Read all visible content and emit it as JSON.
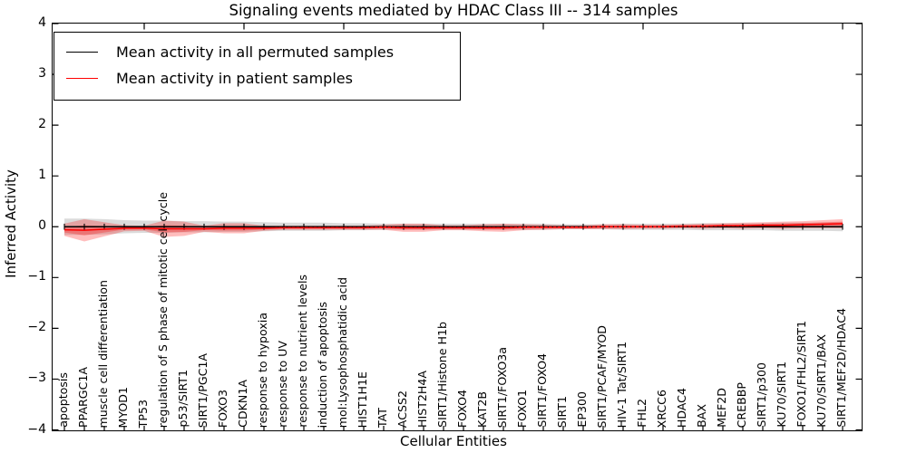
{
  "title": "Signaling events mediated by HDAC Class III -- 314 samples",
  "axes": {
    "xlabel": "Cellular Entities",
    "ylabel": "Inferred Activity",
    "ytick_labels": [
      "4",
      "3",
      "2",
      "1",
      "0",
      "−1",
      "−2",
      "−3",
      "−4"
    ],
    "ylim": [
      -4,
      4
    ]
  },
  "legend": {
    "items": [
      {
        "label": "Mean activity in all permuted samples",
        "color": "#000000"
      },
      {
        "label": "Mean activity in patient samples",
        "color": "#ff0000"
      }
    ]
  },
  "chart_data": {
    "type": "line",
    "title": "Signaling events mediated by HDAC Class III -- 314 samples",
    "xlabel": "Cellular Entities",
    "ylabel": "Inferred Activity",
    "ylim": [
      -4,
      4
    ],
    "grid": false,
    "legend_position": "upper left",
    "x_major_tick_every": 5,
    "categories": [
      "apoptosis",
      "PPARGC1A",
      "muscle cell differentiation",
      "MYOD1",
      "TP53",
      "regulation of S phase of mitotic cell cycle",
      "p53/SIRT1",
      "SIRT1/PGC1A",
      "FOXO3",
      "CDKN1A",
      "response to hypoxia",
      "response to UV",
      "response to nutrient levels",
      "induction of apoptosis",
      "mol:Lysophosphatidic acid",
      "HIST1H1E",
      "TAT",
      "ACSS2",
      "HIST2H4A",
      "SIRT1/Histone H1b",
      "FOXO4",
      "KAT2B",
      "SIRT1/FOXO3a",
      "FOXO1",
      "SIRT1/FOXO4",
      "SIRT1",
      "EP300",
      "SIRT1/PCAF/MYOD",
      "HIV-1 Tat/SIRT1",
      "FHL2",
      "XRCC6",
      "HDAC4",
      "BAX",
      "MEF2D",
      "CREBBP",
      "SIRT1/p300",
      "KU70/SIRT1",
      "FOXO1/FHL2/SIRT1",
      "KU70/SIRT1/BAX",
      "SIRT1/MEF2D/HDAC4"
    ],
    "series": [
      {
        "name": "Mean activity in all permuted samples",
        "color": "#000000",
        "band_color": "#888888",
        "values": [
          0,
          0,
          0,
          0,
          0,
          0,
          0,
          0,
          0,
          0,
          0,
          0,
          0,
          0,
          0,
          0,
          0,
          0,
          0,
          0,
          0,
          0,
          0,
          0,
          0,
          0,
          0,
          0,
          0,
          0,
          0,
          0,
          0,
          0,
          0,
          0,
          0,
          0,
          0,
          0
        ],
        "band_halfwidth": [
          0.16,
          0.16,
          0.15,
          0.13,
          0.12,
          0.12,
          0.11,
          0.11,
          0.1,
          0.1,
          0.09,
          0.08,
          0.08,
          0.08,
          0.07,
          0.07,
          0.06,
          0.06,
          0.06,
          0.06,
          0.06,
          0.06,
          0.06,
          0.06,
          0.06,
          0.05,
          0.05,
          0.05,
          0.06,
          0.06,
          0.06,
          0.06,
          0.07,
          0.07,
          0.07,
          0.07,
          0.08,
          0.08,
          0.08,
          0.09
        ]
      },
      {
        "name": "Mean activity in patient samples",
        "color": "#ff0000",
        "band_color": "#ff0000",
        "values": [
          -0.06,
          -0.07,
          -0.05,
          -0.03,
          -0.03,
          -0.04,
          -0.04,
          -0.04,
          -0.03,
          -0.03,
          -0.03,
          -0.02,
          -0.02,
          -0.02,
          -0.02,
          -0.02,
          -0.01,
          -0.02,
          -0.02,
          -0.02,
          -0.02,
          -0.02,
          -0.02,
          -0.01,
          -0.01,
          -0.01,
          -0.01,
          0.0,
          0.0,
          0.0,
          0.0,
          0.01,
          0.01,
          0.02,
          0.02,
          0.03,
          0.03,
          0.04,
          0.05,
          0.06
        ],
        "band_halfwidth": [
          0.12,
          0.22,
          0.14,
          0.06,
          0.05,
          0.16,
          0.14,
          0.06,
          0.1,
          0.1,
          0.05,
          0.04,
          0.04,
          0.04,
          0.04,
          0.04,
          0.05,
          0.08,
          0.08,
          0.05,
          0.05,
          0.07,
          0.08,
          0.06,
          0.05,
          0.04,
          0.04,
          0.05,
          0.05,
          0.04,
          0.04,
          0.04,
          0.05,
          0.05,
          0.06,
          0.06,
          0.07,
          0.07,
          0.08,
          0.09
        ]
      }
    ]
  }
}
